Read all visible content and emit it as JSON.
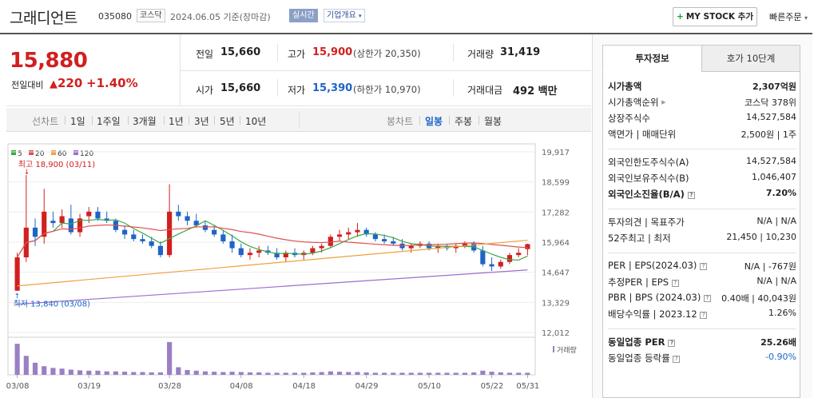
{
  "header": {
    "stock_name": "그래디언트",
    "stock_code": "035080",
    "market_tag": "코스닥",
    "date_text": "2024.06.05 기준(장마감)",
    "realtime_tag": "실시간",
    "overview_tag": "기업개요",
    "mystock_label": "MY STOCK 추가",
    "quick_order_label": "빠른주문"
  },
  "price": {
    "current": "15,880",
    "change_label": "전일대비",
    "change": "220",
    "change_pct": "+1.40%"
  },
  "summary": {
    "prev_close_label": "전일",
    "prev_close": "15,660",
    "high_label": "고가",
    "high": "15,900",
    "upper_limit": "(상한가 20,350)",
    "volume_label": "거래량",
    "volume": "31,419",
    "open_label": "시가",
    "open": "15,660",
    "low_label": "저가",
    "low": "15,390",
    "lower_limit": "(하한가 10,970)",
    "amount_label": "거래대금",
    "amount": "492 백만"
  },
  "period_bar": {
    "line_chart": "선차트",
    "periods": [
      "1일",
      "1주일",
      "3개월",
      "1년",
      "3년",
      "5년",
      "10년"
    ],
    "candle_chart": "봉차트",
    "candle_periods": [
      "일봉",
      "주봉",
      "월봉"
    ],
    "active_candle": "일봉"
  },
  "chart_data": {
    "type": "candlestick",
    "legend": [
      {
        "name": "5",
        "color": "#3aa845"
      },
      {
        "name": "20",
        "color": "#e05050"
      },
      {
        "name": "60",
        "color": "#f0a040"
      },
      {
        "name": "120",
        "color": "#9b6fd0"
      }
    ],
    "y_ticks": [
      "19,917",
      "18,599",
      "17,282",
      "15,964",
      "14,647",
      "13,329",
      "12,012"
    ],
    "ylim": [
      12012,
      19917
    ],
    "x_ticks": [
      "03/08",
      "03/19",
      "03/28",
      "04/08",
      "04/18",
      "04/29",
      "05/10",
      "05/22",
      "05/31"
    ],
    "high_annotation": "최고 18,900 (03/11)",
    "low_annotation": "최저 13,840 (03/08)",
    "volume_label": "거래량",
    "candles": [
      [
        13840,
        15500,
        13840,
        15300
      ],
      [
        15300,
        18900,
        15100,
        16600
      ],
      [
        16600,
        17000,
        15800,
        16200
      ],
      [
        16200,
        18300,
        15900,
        17300
      ],
      [
        16900,
        17300,
        16600,
        16800
      ],
      [
        16800,
        17400,
        16600,
        17100
      ],
      [
        17000,
        17600,
        16300,
        16400
      ],
      [
        16400,
        17200,
        16200,
        17000
      ],
      [
        17100,
        17500,
        16800,
        17300
      ],
      [
        17300,
        17500,
        16900,
        17000
      ],
      [
        17000,
        17300,
        16800,
        16900
      ],
      [
        16900,
        17000,
        16400,
        16500
      ],
      [
        16500,
        16700,
        16100,
        16300
      ],
      [
        16300,
        16500,
        16000,
        16100
      ],
      [
        16100,
        16300,
        15900,
        16000
      ],
      [
        16000,
        16200,
        15700,
        15800
      ],
      [
        15800,
        16000,
        15300,
        15400
      ],
      [
        15400,
        18500,
        15300,
        17300
      ],
      [
        17300,
        17600,
        16900,
        17100
      ],
      [
        17100,
        17300,
        16700,
        16900
      ],
      [
        16900,
        17200,
        16600,
        16700
      ],
      [
        16700,
        16900,
        16400,
        16500
      ],
      [
        16500,
        16700,
        16200,
        16300
      ],
      [
        16300,
        16500,
        15900,
        16000
      ],
      [
        16000,
        16300,
        15500,
        15700
      ],
      [
        15700,
        15900,
        15300,
        15400
      ],
      [
        15400,
        15700,
        15200,
        15500
      ],
      [
        15500,
        15800,
        15300,
        15600
      ],
      [
        15600,
        15800,
        15400,
        15500
      ],
      [
        15500,
        15700,
        15200,
        15300
      ],
      [
        15300,
        15600,
        15100,
        15500
      ],
      [
        15500,
        15700,
        15300,
        15400
      ],
      [
        15400,
        15600,
        15200,
        15500
      ],
      [
        15500,
        15800,
        15400,
        15700
      ],
      [
        15700,
        15900,
        15500,
        15800
      ],
      [
        15800,
        16300,
        15700,
        16200
      ],
      [
        16200,
        16500,
        16000,
        16300
      ],
      [
        16300,
        16600,
        16100,
        16400
      ],
      [
        16400,
        16800,
        16200,
        16500
      ],
      [
        16500,
        16600,
        16200,
        16300
      ],
      [
        16300,
        16400,
        16000,
        16100
      ],
      [
        16100,
        16300,
        15900,
        16000
      ],
      [
        16000,
        16200,
        15800,
        15900
      ],
      [
        15900,
        16100,
        15600,
        15700
      ],
      [
        15700,
        15900,
        15500,
        15800
      ],
      [
        15800,
        16000,
        15700,
        15900
      ],
      [
        15900,
        16000,
        15600,
        15700
      ],
      [
        15700,
        15900,
        15500,
        15800
      ],
      [
        15800,
        15900,
        15600,
        15700
      ],
      [
        15700,
        15900,
        15500,
        15800
      ],
      [
        15800,
        16000,
        15700,
        15900
      ],
      [
        15900,
        16000,
        15500,
        15600
      ],
      [
        15600,
        15800,
        14900,
        15000
      ],
      [
        15000,
        15300,
        14700,
        14900
      ],
      [
        14900,
        15200,
        14800,
        15100
      ],
      [
        15100,
        15500,
        15000,
        15400
      ],
      [
        15400,
        15700,
        15300,
        15500
      ],
      [
        15660,
        15900,
        15390,
        15880
      ]
    ],
    "volumes": [
      90,
      55,
      35,
      25,
      20,
      18,
      15,
      13,
      12,
      12,
      10,
      10,
      9,
      8,
      8,
      7,
      7,
      95,
      22,
      14,
      12,
      10,
      9,
      8,
      9,
      8,
      7,
      7,
      6,
      6,
      6,
      6,
      6,
      7,
      8,
      10,
      9,
      8,
      8,
      7,
      6,
      6,
      6,
      6,
      6,
      6,
      6,
      6,
      6,
      6,
      6,
      7,
      12,
      9,
      7,
      6,
      6,
      6
    ]
  },
  "right_panel": {
    "tab_active": "투자정보",
    "tab_inactive": "호가 10단계",
    "rows": [
      {
        "k": "시가총액",
        "v": "2,307억원"
      },
      {
        "k": "시가총액순위",
        "v": "코스닥 378위"
      },
      {
        "k": "상장주식수",
        "v": "14,527,584"
      },
      {
        "k": "액면가 | 매매단위",
        "v": "2,500원 | 1주"
      },
      {
        "k": "외국인한도주식수(A)",
        "v": "14,527,584"
      },
      {
        "k": "외국인보유주식수(B)",
        "v": "1,046,407"
      },
      {
        "k": "외국인소진율(B/A)",
        "v": "7.20%"
      },
      {
        "k": "투자의견 | 목표주가",
        "v": "N/A | N/A"
      },
      {
        "k": "52주최고 | 최저",
        "v": "21,450 | 10,230"
      },
      {
        "k": "PER | EPS(2024.03)",
        "v": "N/A | -767원"
      },
      {
        "k": "추정PER | EPS",
        "v": "N/A | N/A"
      },
      {
        "k": "PBR | BPS (2024.03)",
        "v": "0.40배 | 40,043원"
      },
      {
        "k": "배당수익률 | 2023.12",
        "v": "1.26%"
      },
      {
        "k": "동일업종 PER",
        "v": "25.26배"
      },
      {
        "k": "동일업종 등락률",
        "v": "-0.90%"
      }
    ]
  }
}
